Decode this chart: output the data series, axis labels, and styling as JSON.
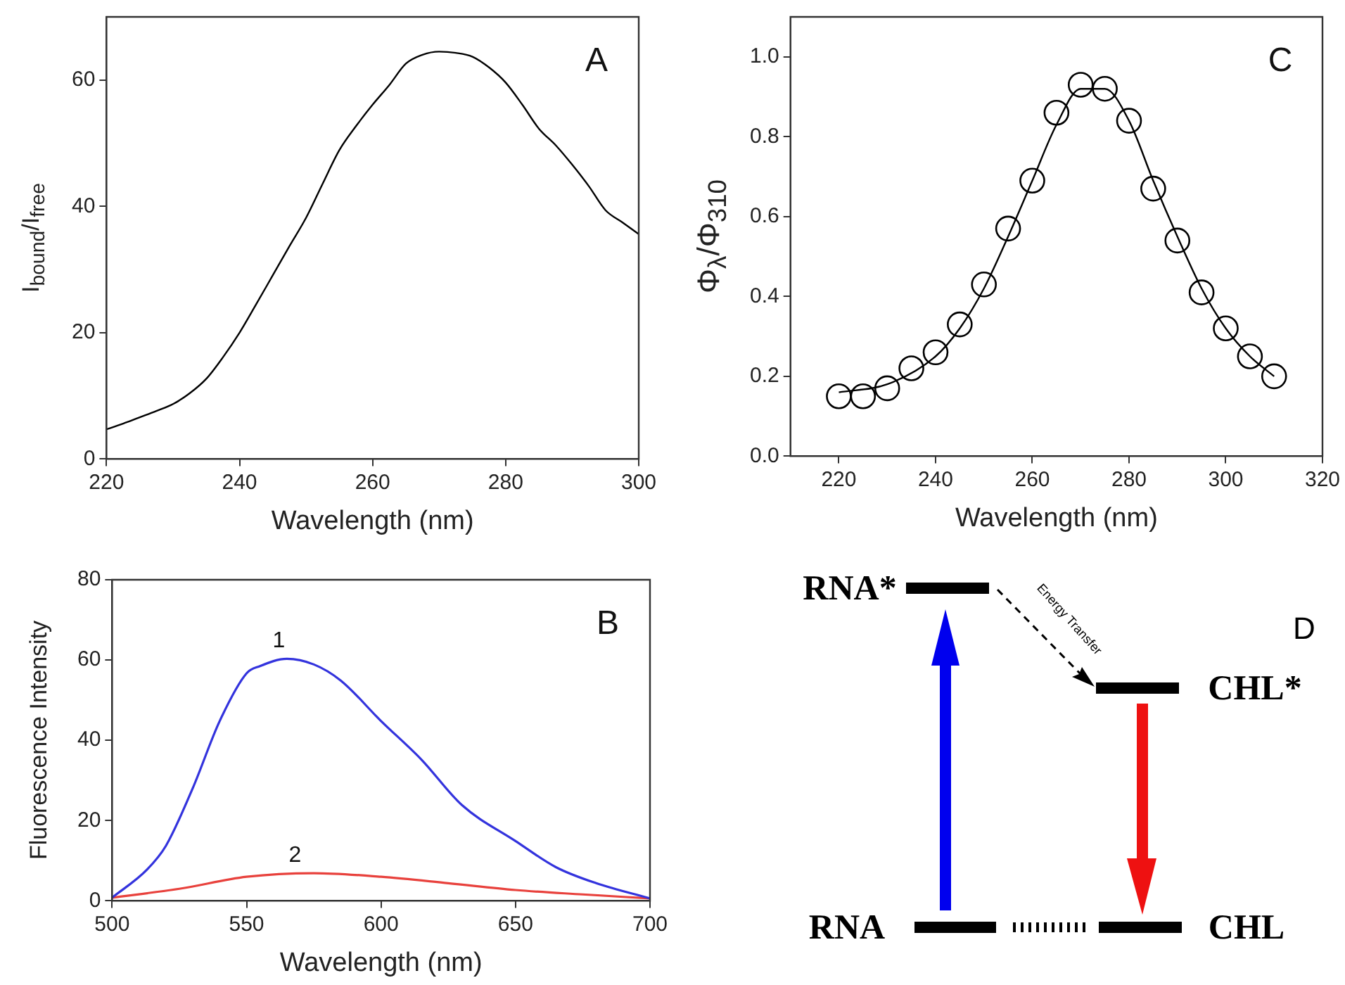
{
  "chart_data": [
    {
      "type": "line",
      "xlabel": "Wavelength (nm)",
      "ylabel": "I$_{bound}$/I$_{free}$",
      "annotations": [
        "A"
      ],
      "xlim": [
        220,
        300
      ],
      "ylim": [
        0,
        70
      ],
      "xticks": [
        220,
        240,
        260,
        280,
        300
      ],
      "yticks": [
        0,
        20,
        40,
        60
      ],
      "series": [
        {
          "color": "#000000",
          "x": [
            220,
            222.5,
            225,
            227.5,
            230,
            232.5,
            235,
            237.5,
            240,
            242.5,
            245,
            247.5,
            250,
            252.5,
            255,
            257.5,
            260,
            262.5,
            265,
            267.5,
            270,
            272.5,
            275,
            277.5,
            280,
            282.5,
            285,
            287.5,
            290,
            292.5,
            295,
            297.5,
            300
          ],
          "values": [
            4.7,
            5.6,
            6.6,
            7.6,
            8.7,
            10.4,
            12.7,
            16.1,
            20.0,
            24.5,
            29.1,
            33.7,
            38.2,
            43.6,
            48.9,
            52.7,
            56.1,
            59.2,
            62.6,
            64.0,
            64.5,
            64.3,
            63.7,
            62.0,
            59.6,
            56.1,
            52.3,
            49.7,
            46.6,
            43.2,
            39.4,
            37.5,
            35.6
          ]
        }
      ]
    },
    {
      "type": "scatter",
      "xlabel": "Wavelength (nm)",
      "ylabel": "Φ$_{λ}$/Φ$_{310}$",
      "annotations": [
        "C"
      ],
      "xlim": [
        210,
        320
      ],
      "ylim": [
        0,
        1.1
      ],
      "xticks": [
        220,
        240,
        260,
        280,
        300,
        320
      ],
      "yticks": [
        {
          "value": 0,
          "label": "0.0"
        },
        0.2,
        0.4,
        0.6,
        0.8,
        {
          "value": 1,
          "label": "1.0"
        }
      ],
      "series": [
        {
          "type": "scatter",
          "marker": "circle",
          "color": "#000000",
          "x": [
            220,
            225,
            230,
            235,
            240,
            245,
            250,
            255,
            260,
            265,
            270,
            275,
            280,
            285,
            290,
            295,
            300,
            305,
            310
          ],
          "values": [
            0.15,
            0.15,
            0.17,
            0.22,
            0.26,
            0.33,
            0.43,
            0.57,
            0.69,
            0.86,
            0.93,
            0.92,
            0.84,
            0.67,
            0.54,
            0.41,
            0.32,
            0.25,
            0.2
          ]
        },
        {
          "type": "line",
          "color": "#000000",
          "x": [
            220,
            230,
            240,
            245,
            250,
            255,
            260,
            265,
            270,
            275,
            280,
            285,
            290,
            295,
            300,
            305,
            310
          ],
          "values": [
            0.16,
            0.18,
            0.25,
            0.32,
            0.42,
            0.55,
            0.69,
            0.83,
            0.92,
            0.92,
            0.84,
            0.69,
            0.55,
            0.42,
            0.32,
            0.25,
            0.2
          ]
        }
      ]
    },
    {
      "type": "line",
      "xlabel": "Wavelength (nm)",
      "ylabel": "Fluorescence Intensity",
      "annotations": [
        "B",
        "1",
        "2"
      ],
      "xlim": [
        500,
        700
      ],
      "ylim": [
        0,
        80
      ],
      "xticks": [
        500,
        550,
        600,
        650,
        700
      ],
      "yticks": [
        0,
        20,
        40,
        60,
        80
      ],
      "series": [
        {
          "color": "#3333dd",
          "x": [
            500,
            513,
            520,
            530,
            540,
            550,
            555,
            565,
            575,
            585,
            600,
            615,
            630,
            650,
            665,
            680,
            700
          ],
          "values": [
            0.8,
            7.8,
            13.7,
            28.1,
            44.8,
            56.7,
            58.5,
            60.3,
            58.9,
            54.9,
            44.8,
            35.2,
            23.9,
            14.9,
            8.4,
            4.4,
            0.6
          ]
        },
        {
          "color": "#e8413c",
          "x": [
            500,
            525,
            550,
            575,
            600,
            625,
            650,
            675,
            700
          ],
          "values": [
            0.8,
            3.0,
            6.0,
            6.9,
            6.0,
            4.4,
            2.7,
            1.6,
            0.6
          ]
        }
      ]
    },
    {
      "type": "other",
      "annotations": [
        "RNA*",
        "CHL*",
        "RNA",
        "CHL",
        "Energy Transfer",
        "D"
      ]
    }
  ]
}
